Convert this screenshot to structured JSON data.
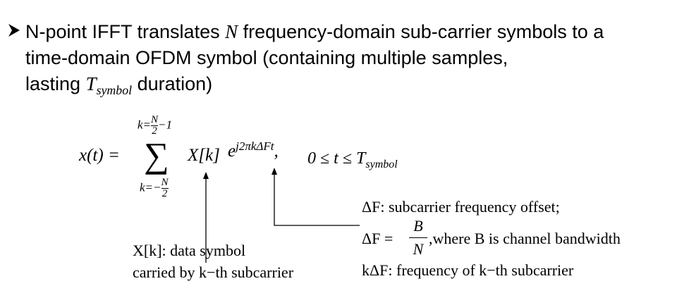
{
  "bullet": {
    "line1_pre": "N-point IFFT translates ",
    "line1_var": "N",
    "line1_post": " frequency-domain sub-carrier symbols to a",
    "line2": "time-domain OFDM symbol (containing multiple samples,",
    "line3_pre": "lasting ",
    "line3_T": "T",
    "line3_sub": "symbol",
    "line3_post": " duration)"
  },
  "formula": {
    "lhs": "x(t) =",
    "upper_k": "k=",
    "upper_N": "N",
    "upper_two": "2",
    "upper_rest": "−1",
    "sigma": "∑",
    "lower_k": "k=−",
    "lower_N": "N",
    "lower_two": "2",
    "term_X": "X[k]",
    "term_e": "e",
    "term_exp": "j2πkΔFt",
    "condition_comma": ",",
    "condition": "0 ≤ t ≤ T",
    "condition_sub": "symbol"
  },
  "notes": {
    "xk_label_1": "X[k]: data symbol",
    "xk_label_2": "carried by k−th subcarrier",
    "df_line1": "ΔF: subcarrier frequency offset;",
    "df_lhs": "ΔF =",
    "df_num": "B",
    "df_den": "N",
    "df_rest": ",where B is channel bandwidth",
    "kdf_line": "kΔF: frequency of k−th subcarrier"
  },
  "colors": {
    "text": "#000000",
    "background": "#ffffff"
  }
}
